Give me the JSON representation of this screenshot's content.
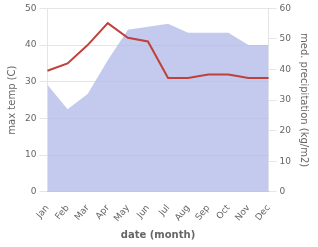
{
  "chart_data": {
    "type": "line",
    "xlabel": "date (month)",
    "ylabel": "max temp (C)",
    "y2label": "med. precipitation (kg/m2)",
    "categories": [
      "Jan",
      "Feb",
      "Mar",
      "Apr",
      "May",
      "Jun",
      "Jul",
      "Aug",
      "Sep",
      "Oct",
      "Nov",
      "Dec"
    ],
    "series": [
      {
        "type": "area",
        "axis": "y2",
        "color": "#b0b8e8",
        "values": [
          35,
          27,
          32,
          43,
          53,
          54,
          55,
          52,
          52,
          52,
          48,
          48
        ]
      },
      {
        "type": "line",
        "color": "#c0403a",
        "values": [
          33,
          35,
          40,
          46,
          42,
          41,
          31,
          31,
          32,
          32,
          31,
          31
        ]
      }
    ],
    "ylim": [
      0,
      50
    ],
    "yticks": [
      0,
      10,
      20,
      30,
      40,
      50
    ],
    "y2lim": [
      0,
      60
    ],
    "y2ticks": [
      0,
      10,
      20,
      30,
      40,
      50,
      60
    ],
    "grid": true
  }
}
